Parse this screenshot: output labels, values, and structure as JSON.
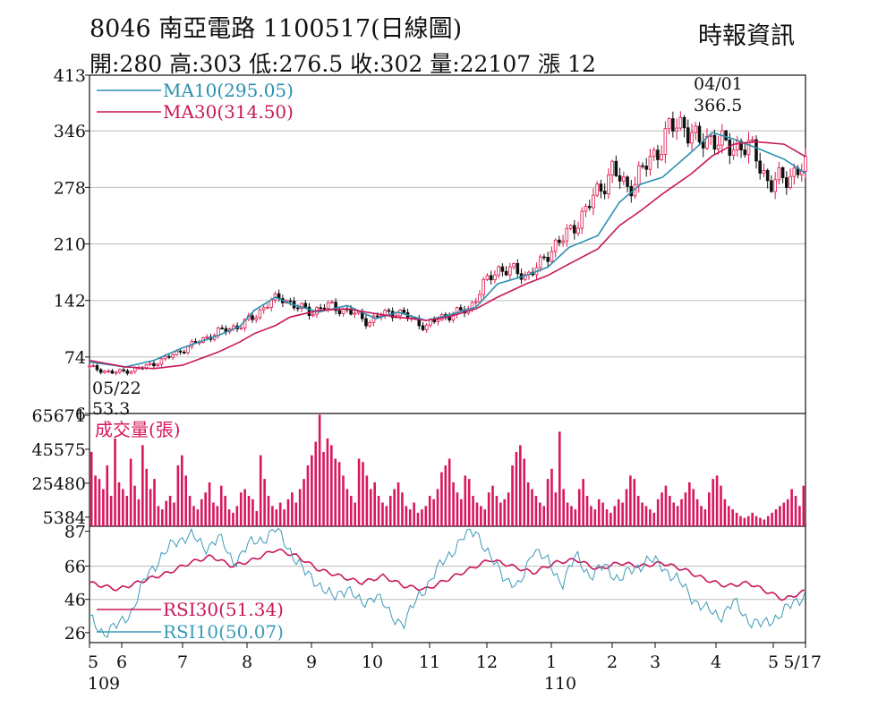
{
  "header": {
    "title": "8046  南亞電路 1100517(日線圖)",
    "source": "時報資訊",
    "quote": "開:280 高:303 低:276.5 收:302 量:22107 漲 12"
  },
  "colors": {
    "up": "#e0144a",
    "down": "#111111",
    "ma10": "#2a8fb0",
    "ma30": "#c8175a",
    "volume": "#d8175e",
    "rsi30": "#c8175a",
    "rsi10": "#3c9ab8",
    "grid": "#bbbbbb"
  },
  "chart_data": [
    {
      "type": "line",
      "panel": "price",
      "ylim": [
        6,
        413
      ],
      "yticks": [
        "413",
        "346",
        "278",
        "210",
        "142",
        "74",
        "6"
      ],
      "legend": [
        {
          "key": "ma10",
          "label": "MA10(295.05)"
        },
        {
          "key": "ma30",
          "label": "MA30(314.50)"
        }
      ],
      "annotations": [
        {
          "date": "04/01",
          "value": "366.5",
          "x_index": 1.0,
          "price": 366.5
        },
        {
          "date": "05/22",
          "value": "53.3",
          "x_index": 0.0,
          "price": 53.3
        }
      ],
      "series": [
        {
          "name": "MA10",
          "key": "ma10",
          "points": [
            [
              0,
              68
            ],
            [
              0.05,
              62
            ],
            [
              0.09,
              70
            ],
            [
              0.13,
              85
            ],
            [
              0.18,
              100
            ],
            [
              0.21,
              111
            ],
            [
              0.23,
              130
            ],
            [
              0.26,
              146
            ],
            [
              0.28,
              138
            ],
            [
              0.32,
              128
            ],
            [
              0.36,
              136
            ],
            [
              0.4,
              120
            ],
            [
              0.43,
              128
            ],
            [
              0.47,
              118
            ],
            [
              0.5,
              124
            ],
            [
              0.54,
              134
            ],
            [
              0.57,
              162
            ],
            [
              0.61,
              172
            ],
            [
              0.64,
              182
            ],
            [
              0.67,
              206
            ],
            [
              0.71,
              220
            ],
            [
              0.74,
              260
            ],
            [
              0.77,
              282
            ],
            [
              0.8,
              290
            ],
            [
              0.84,
              320
            ],
            [
              0.87,
              344
            ],
            [
              0.9,
              336
            ],
            [
              0.93,
              326
            ],
            [
              0.97,
              312
            ],
            [
              1.0,
              295
            ]
          ]
        },
        {
          "name": "MA30",
          "key": "ma30",
          "points": [
            [
              0,
              70
            ],
            [
              0.05,
              62
            ],
            [
              0.09,
              60
            ],
            [
              0.13,
              64
            ],
            [
              0.18,
              80
            ],
            [
              0.21,
              92
            ],
            [
              0.23,
              102
            ],
            [
              0.26,
              112
            ],
            [
              0.28,
              122
            ],
            [
              0.32,
              130
            ],
            [
              0.36,
              132
            ],
            [
              0.4,
              126
            ],
            [
              0.43,
              122
            ],
            [
              0.47,
              118
            ],
            [
              0.5,
              122
            ],
            [
              0.54,
              132
            ],
            [
              0.57,
              146
            ],
            [
              0.61,
              162
            ],
            [
              0.64,
              172
            ],
            [
              0.67,
              186
            ],
            [
              0.71,
              204
            ],
            [
              0.74,
              232
            ],
            [
              0.77,
              250
            ],
            [
              0.8,
              270
            ],
            [
              0.84,
              294
            ],
            [
              0.87,
              316
            ],
            [
              0.9,
              330
            ],
            [
              0.93,
              333
            ],
            [
              0.97,
              330
            ],
            [
              1.0,
              315
            ]
          ]
        }
      ],
      "candles_close": [
        [
          0,
          62
        ],
        [
          0.03,
          55
        ],
        [
          0.06,
          58
        ],
        [
          0.09,
          66
        ],
        [
          0.12,
          78
        ],
        [
          0.15,
          92
        ],
        [
          0.18,
          104
        ],
        [
          0.21,
          112
        ],
        [
          0.23,
          122
        ],
        [
          0.25,
          140
        ],
        [
          0.27,
          145
        ],
        [
          0.29,
          134
        ],
        [
          0.31,
          128
        ],
        [
          0.33,
          136
        ],
        [
          0.35,
          132
        ],
        [
          0.37,
          126
        ],
        [
          0.39,
          116
        ],
        [
          0.41,
          126
        ],
        [
          0.43,
          128
        ],
        [
          0.45,
          120
        ],
        [
          0.47,
          110
        ],
        [
          0.49,
          122
        ],
        [
          0.51,
          126
        ],
        [
          0.53,
          132
        ],
        [
          0.55,
          160
        ],
        [
          0.57,
          180
        ],
        [
          0.59,
          178
        ],
        [
          0.61,
          172
        ],
        [
          0.63,
          185
        ],
        [
          0.65,
          210
        ],
        [
          0.67,
          222
        ],
        [
          0.69,
          248
        ],
        [
          0.71,
          272
        ],
        [
          0.73,
          300
        ],
        [
          0.75,
          276
        ],
        [
          0.77,
          296
        ],
        [
          0.79,
          318
        ],
        [
          0.81,
          348
        ],
        [
          0.83,
          356
        ],
        [
          0.85,
          330
        ],
        [
          0.87,
          340
        ],
        [
          0.89,
          325
        ],
        [
          0.91,
          330
        ],
        [
          0.93,
          318
        ],
        [
          0.95,
          280
        ],
        [
          0.97,
          290
        ],
        [
          1.0,
          302
        ]
      ]
    },
    {
      "type": "bar",
      "panel": "volume",
      "label": "成交量(張)",
      "yticks": [
        "65671",
        "45575",
        "25480",
        "5384"
      ],
      "ylim": [
        0,
        65671
      ],
      "values": [
        44000,
        30000,
        28000,
        22000,
        36000,
        18000,
        52000,
        26000,
        22000,
        18000,
        40000,
        24000,
        16000,
        48000,
        34000,
        22000,
        28000,
        12000,
        10000,
        15000,
        18000,
        14000,
        36000,
        42000,
        30000,
        18000,
        12000,
        10000,
        16000,
        20000,
        26000,
        14000,
        12000,
        24000,
        18000,
        10000,
        8000,
        12000,
        20000,
        22000,
        18000,
        16000,
        9000,
        42000,
        28000,
        18000,
        12000,
        10000,
        14000,
        10000,
        16000,
        20000,
        14000,
        22000,
        28000,
        36000,
        42000,
        50000,
        66000,
        44000,
        52000,
        48000,
        40000,
        38000,
        30000,
        22000,
        18000,
        14000,
        40000,
        38000,
        30000,
        22000,
        26000,
        18000,
        14000,
        12000,
        18000,
        22000,
        26000,
        20000,
        12000,
        10000,
        14000,
        8000,
        10000,
        12000,
        18000,
        16000,
        22000,
        32000,
        36000,
        40000,
        26000,
        20000,
        16000,
        30000,
        28000,
        18000,
        14000,
        12000,
        10000,
        20000,
        24000,
        18000,
        14000,
        16000,
        20000,
        36000,
        44000,
        48000,
        40000,
        26000,
        22000,
        18000,
        14000,
        12000,
        28000,
        34000,
        20000,
        56000,
        22000,
        14000,
        12000,
        10000,
        22000,
        28000,
        18000,
        12000,
        10000,
        16000,
        14000,
        10000,
        8000,
        12000,
        16000,
        14000,
        22000,
        30000,
        28000,
        18000,
        14000,
        12000,
        10000,
        8000,
        16000,
        20000,
        24000,
        18000,
        14000,
        12000,
        16000,
        20000,
        26000,
        22000,
        16000,
        12000,
        10000,
        20000,
        28000,
        30000,
        24000,
        16000,
        12000,
        10000,
        8000,
        6000,
        5000,
        6000,
        8000,
        6000,
        5000,
        4000,
        6000,
        8000,
        10000,
        12000,
        14000,
        16000,
        22000,
        18000,
        12000,
        24000
      ]
    },
    {
      "type": "line",
      "panel": "rsi",
      "yticks": [
        "87",
        "66",
        "46",
        "26"
      ],
      "ylim": [
        20,
        90
      ],
      "legend": [
        {
          "key": "rsi30",
          "label": "RSI30(51.34)"
        },
        {
          "key": "rsi10",
          "label": "RSI10(50.07)"
        }
      ],
      "series": [
        {
          "name": "RSI30",
          "key": "rsi30",
          "points": [
            [
              0,
              56
            ],
            [
              0.04,
              52
            ],
            [
              0.08,
              58
            ],
            [
              0.11,
              62
            ],
            [
              0.14,
              68
            ],
            [
              0.17,
              72
            ],
            [
              0.2,
              66
            ],
            [
              0.23,
              70
            ],
            [
              0.26,
              76
            ],
            [
              0.29,
              72
            ],
            [
              0.32,
              64
            ],
            [
              0.35,
              60
            ],
            [
              0.38,
              56
            ],
            [
              0.41,
              60
            ],
            [
              0.44,
              54
            ],
            [
              0.47,
              52
            ],
            [
              0.5,
              58
            ],
            [
              0.53,
              64
            ],
            [
              0.56,
              70
            ],
            [
              0.59,
              66
            ],
            [
              0.62,
              62
            ],
            [
              0.65,
              68
            ],
            [
              0.68,
              70
            ],
            [
              0.71,
              64
            ],
            [
              0.74,
              68
            ],
            [
              0.77,
              66
            ],
            [
              0.8,
              68
            ],
            [
              0.83,
              64
            ],
            [
              0.86,
              58
            ],
            [
              0.89,
              54
            ],
            [
              0.92,
              56
            ],
            [
              0.95,
              50
            ],
            [
              0.97,
              46
            ],
            [
              1.0,
              51
            ]
          ]
        },
        {
          "name": "RSI10",
          "key": "rsi10",
          "points": [
            [
              0,
              34
            ],
            [
              0.02,
              26
            ],
            [
              0.04,
              30
            ],
            [
              0.06,
              40
            ],
            [
              0.08,
              60
            ],
            [
              0.1,
              72
            ],
            [
              0.12,
              80
            ],
            [
              0.14,
              86
            ],
            [
              0.16,
              76
            ],
            [
              0.18,
              84
            ],
            [
              0.2,
              68
            ],
            [
              0.22,
              78
            ],
            [
              0.24,
              82
            ],
            [
              0.26,
              88
            ],
            [
              0.28,
              76
            ],
            [
              0.3,
              62
            ],
            [
              0.32,
              56
            ],
            [
              0.34,
              46
            ],
            [
              0.36,
              54
            ],
            [
              0.38,
              42
            ],
            [
              0.4,
              50
            ],
            [
              0.42,
              36
            ],
            [
              0.44,
              32
            ],
            [
              0.46,
              48
            ],
            [
              0.48,
              60
            ],
            [
              0.5,
              72
            ],
            [
              0.52,
              82
            ],
            [
              0.54,
              88
            ],
            [
              0.56,
              70
            ],
            [
              0.58,
              60
            ],
            [
              0.6,
              52
            ],
            [
              0.62,
              78
            ],
            [
              0.64,
              68
            ],
            [
              0.66,
              56
            ],
            [
              0.68,
              72
            ],
            [
              0.7,
              60
            ],
            [
              0.72,
              66
            ],
            [
              0.74,
              58
            ],
            [
              0.76,
              64
            ],
            [
              0.78,
              70
            ],
            [
              0.8,
              66
            ],
            [
              0.82,
              58
            ],
            [
              0.84,
              48
            ],
            [
              0.86,
              40
            ],
            [
              0.88,
              36
            ],
            [
              0.9,
              44
            ],
            [
              0.92,
              34
            ],
            [
              0.94,
              30
            ],
            [
              0.96,
              36
            ],
            [
              0.98,
              42
            ],
            [
              1.0,
              50
            ]
          ]
        }
      ]
    }
  ],
  "x_axis": {
    "ticks": [
      {
        "label": "5",
        "pos": 0.0
      },
      {
        "label": "6",
        "pos": 0.045
      },
      {
        "label": "7",
        "pos": 0.13
      },
      {
        "label": "8",
        "pos": 0.22
      },
      {
        "label": "9",
        "pos": 0.31
      },
      {
        "label": "10",
        "pos": 0.395
      },
      {
        "label": "11",
        "pos": 0.475
      },
      {
        "label": "12",
        "pos": 0.555
      },
      {
        "label": "1",
        "pos": 0.645
      },
      {
        "label": "2",
        "pos": 0.73
      },
      {
        "label": "3",
        "pos": 0.79
      },
      {
        "label": "4",
        "pos": 0.875
      },
      {
        "label": "5",
        "pos": 0.955
      },
      {
        "label": "5/17",
        "pos": 1.0
      }
    ],
    "years": [
      {
        "label": "109",
        "pos": 0.0
      },
      {
        "label": "110",
        "pos": 0.645
      }
    ]
  }
}
